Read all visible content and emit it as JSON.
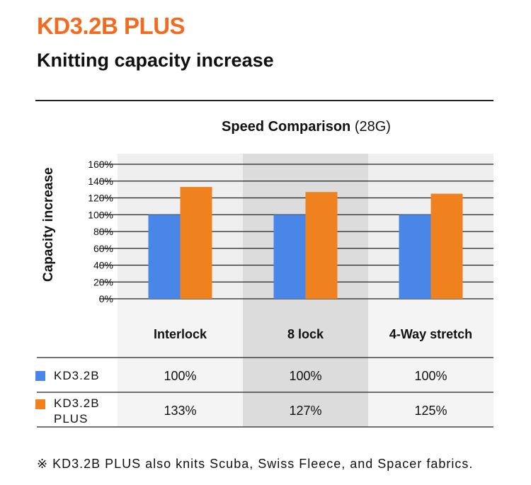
{
  "header": {
    "product": "KD3.2B PLUS",
    "subtitle": "Knitting capacity increase"
  },
  "chart_data": {
    "type": "bar",
    "title_bold": "Speed  Comparison",
    "title_suffix": " (28G)",
    "ylabel": "Capacity increase",
    "xlabel": "",
    "categories": [
      "Interlock",
      "8 lock",
      "4-Way stretch"
    ],
    "series": [
      {
        "name": "KD3.2B",
        "values": [
          100,
          100,
          100
        ],
        "color": "#4a86e8"
      },
      {
        "name": "KD3.2B PLUS",
        "values": [
          133,
          127,
          125
        ],
        "color": "#f0811f"
      }
    ],
    "ylim": [
      0,
      160
    ],
    "yticks": [
      "0%",
      "20%",
      "40%",
      "60%",
      "80%",
      "100%",
      "120%",
      "140%",
      "160%"
    ],
    "grid": true,
    "highlight_category": "8 lock",
    "highlight_color": "#dcdcdc",
    "table": {
      "rows": [
        {
          "label": "KD3.2B",
          "cells": [
            "100%",
            "100%",
            "100%"
          ]
        },
        {
          "label_line1": "KD3.2B",
          "label_line2": "PLUS",
          "cells": [
            "133%",
            "127%",
            "125%"
          ]
        }
      ]
    }
  },
  "footnote": "※ KD3.2B PLUS also knits Scuba, Swiss Fleece, and Spacer fabrics."
}
